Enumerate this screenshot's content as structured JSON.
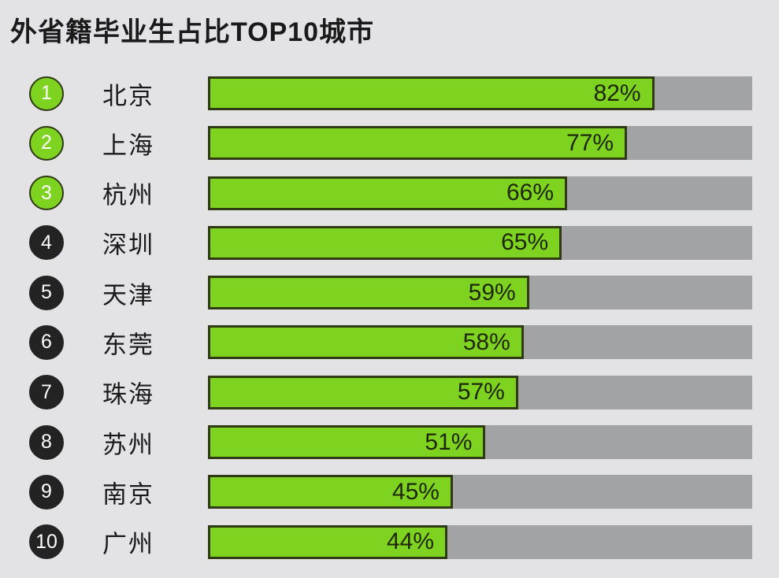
{
  "title": "外省籍毕业生占比TOP10城市",
  "chart_data": {
    "type": "bar",
    "orientation": "horizontal",
    "title": "外省籍毕业生占比TOP10城市",
    "categories": [
      "北京",
      "上海",
      "杭州",
      "深圳",
      "天津",
      "东莞",
      "珠海",
      "苏州",
      "南京",
      "广州"
    ],
    "values": [
      82,
      77,
      66,
      65,
      59,
      58,
      57,
      51,
      45,
      44
    ],
    "value_labels": [
      "82%",
      "77%",
      "66%",
      "65%",
      "59%",
      "58%",
      "57%",
      "51%",
      "45%",
      "44%"
    ],
    "ranks": [
      "1",
      "2",
      "3",
      "4",
      "5",
      "6",
      "7",
      "8",
      "9",
      "10"
    ],
    "highlighted_rank_count": 3,
    "xlim": [
      0,
      100
    ],
    "grid": false,
    "legend": false,
    "colors": {
      "background": "#e3e3e5",
      "bar_fill": "#7ed321",
      "bar_border": "#2f3a14",
      "track": "#a1a3a4",
      "rank_top_fill": "#7ed321",
      "rank_other_fill": "#232323",
      "rank_text": "#ffffff",
      "value_text": "#1e2607",
      "title_text": "#1a1a1a",
      "city_text": "#1a1a1a"
    }
  }
}
